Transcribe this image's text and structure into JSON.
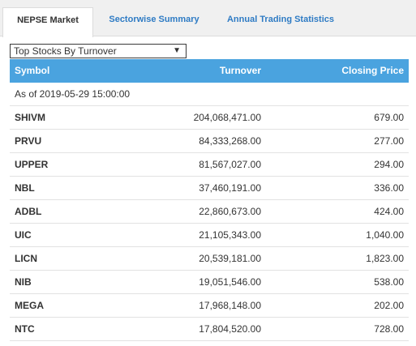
{
  "tabs": [
    {
      "label": "NEPSE Market",
      "active": true
    },
    {
      "label": "Sectorwise Summary",
      "active": false
    },
    {
      "label": "Annual Trading Statistics",
      "active": false
    }
  ],
  "dropdown": {
    "selected": "Top Stocks By Turnover",
    "arrow": "▼"
  },
  "table": {
    "headers": {
      "symbol": "Symbol",
      "turnover": "Turnover",
      "closing_price": "Closing Price"
    },
    "as_of": "As of 2019-05-29 15:00:00",
    "rows": [
      {
        "symbol": "SHIVM",
        "turnover": "204,068,471.00",
        "closing_price": "679.00"
      },
      {
        "symbol": "PRVU",
        "turnover": "84,333,268.00",
        "closing_price": "277.00"
      },
      {
        "symbol": "UPPER",
        "turnover": "81,567,027.00",
        "closing_price": "294.00"
      },
      {
        "symbol": "NBL",
        "turnover": "37,460,191.00",
        "closing_price": "336.00"
      },
      {
        "symbol": "ADBL",
        "turnover": "22,860,673.00",
        "closing_price": "424.00"
      },
      {
        "symbol": "UIC",
        "turnover": "21,105,343.00",
        "closing_price": "1,040.00"
      },
      {
        "symbol": "LICN",
        "turnover": "20,539,181.00",
        "closing_price": "1,823.00"
      },
      {
        "symbol": "NIB",
        "turnover": "19,051,546.00",
        "closing_price": "538.00"
      },
      {
        "symbol": "MEGA",
        "turnover": "17,968,148.00",
        "closing_price": "202.00"
      },
      {
        "symbol": "NTC",
        "turnover": "17,804,520.00",
        "closing_price": "728.00"
      }
    ]
  },
  "colors": {
    "header_bg": "#4aa3df",
    "tab_link": "#2e7bc4"
  }
}
